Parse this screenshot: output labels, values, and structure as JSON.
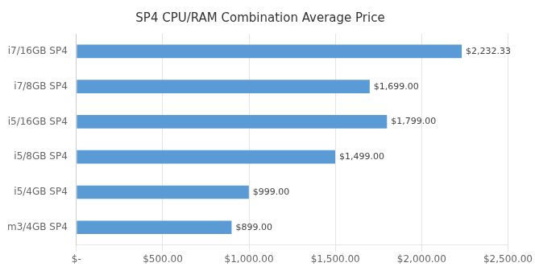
{
  "chart_data": {
    "type": "bar",
    "orientation": "horizontal",
    "title": "SP4 CPU/RAM Combination Average Price",
    "categories": [
      "m3/4GB SP4",
      "i5/4GB SP4",
      "i5/8GB SP4",
      "i5/16GB SP4",
      "i7/8GB SP4",
      "i7/16GB SP4"
    ],
    "values": [
      899.0,
      999.0,
      1499.0,
      1799.0,
      1699.0,
      2232.33
    ],
    "value_labels": [
      "$899.00",
      "$999.00",
      "$1,499.00",
      "$1,799.00",
      "$1,699.00",
      "$2,232.33"
    ],
    "data_labels": true,
    "color": "#5b9bd5",
    "xlim": [
      0,
      2500
    ],
    "xticks": [
      {
        "value": 0,
        "label": "$-"
      },
      {
        "value": 500,
        "label": "$500.00"
      },
      {
        "value": 1000,
        "label": "$1,000.00"
      },
      {
        "value": 1500,
        "label": "$1,500.00"
      },
      {
        "value": 2000,
        "label": "$2,000.00"
      },
      {
        "value": 2500,
        "label": "$2,500.00"
      }
    ],
    "grid": true
  }
}
